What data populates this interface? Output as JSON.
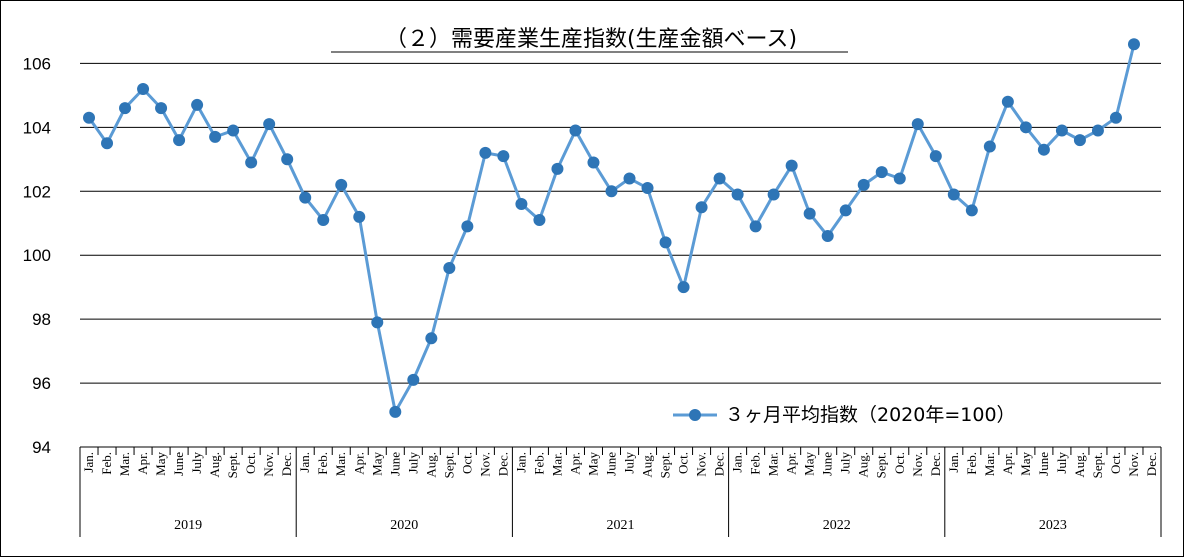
{
  "chart_data": {
    "type": "line",
    "title": "（２）需要産業生産指数(生産金額ベース)",
    "ylim": [
      94,
      106.7
    ],
    "yticks": [
      "94",
      "96",
      "98",
      "100",
      "102",
      "104",
      "106"
    ],
    "grid": true,
    "legend_position": "bottom-right",
    "color": "#5b9bd5",
    "marker_color": "#2e75b6",
    "month_labels": [
      "Jan.",
      "Feb.",
      "Mar.",
      "Apr.",
      "May",
      "June",
      "July",
      "Aug.",
      "Sept.",
      "Oct.",
      "Nov.",
      "Dec."
    ],
    "years": [
      "2019",
      "2020",
      "2021",
      "2022",
      "2023"
    ],
    "series": [
      {
        "name": "３ヶ月平均指数（2020年=100）",
        "values": [
          104.3,
          103.5,
          104.6,
          105.2,
          104.6,
          103.6,
          104.7,
          103.7,
          103.9,
          102.9,
          104.1,
          103.0,
          101.8,
          101.1,
          102.2,
          101.2,
          97.9,
          95.1,
          96.1,
          97.4,
          99.6,
          100.9,
          103.2,
          103.1,
          101.6,
          101.1,
          102.7,
          103.9,
          102.9,
          102.0,
          102.4,
          102.1,
          100.4,
          99.0,
          101.5,
          102.4,
          101.9,
          100.9,
          101.9,
          102.8,
          101.3,
          100.6,
          101.4,
          102.2,
          102.6,
          102.4,
          104.1,
          103.1,
          101.9,
          101.4,
          103.4,
          104.8,
          104.0,
          103.3,
          103.9,
          103.6,
          103.9,
          104.3,
          106.6
        ]
      }
    ]
  }
}
